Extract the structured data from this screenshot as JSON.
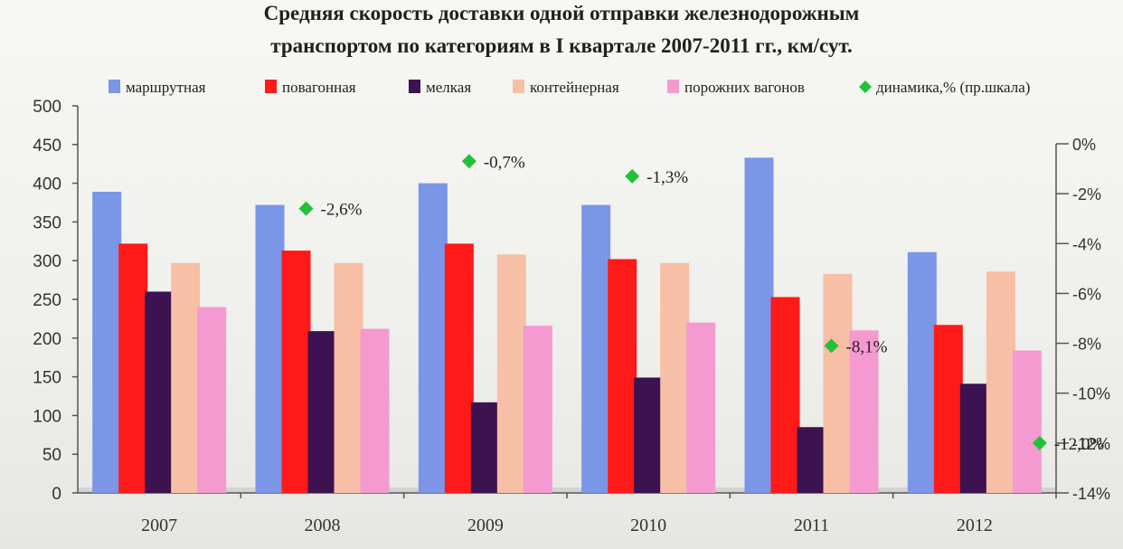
{
  "title": {
    "line1": "Средняя скорость доставки одной отправки железнодорожным",
    "line2": "транспортом по категориям в I квартале 2007-2011 гг., км/сут."
  },
  "chart_data": {
    "type": "bar",
    "title": "Средняя скорость доставки одной отправки железнодорожным транспортом по категориям в I квартале 2007-2011 гг., км/сут.",
    "categories": [
      "2007",
      "2008",
      "2009",
      "2010",
      "2011",
      "2012"
    ],
    "series": [
      {
        "name": "маршрутная",
        "color": "#7b96e6",
        "values": [
          389,
          372,
          400,
          372,
          433,
          311
        ]
      },
      {
        "name": "повагонная",
        "color": "#ff1a1a",
        "values": [
          322,
          313,
          322,
          302,
          253,
          217
        ]
      },
      {
        "name": "мелкая",
        "color": "#3d1250",
        "values": [
          260,
          209,
          117,
          149,
          85,
          141
        ]
      },
      {
        "name": "контейнерная",
        "color": "#f6bfa6",
        "values": [
          297,
          297,
          308,
          297,
          283,
          286
        ]
      },
      {
        "name": "порожних вагонов",
        "color": "#f49ad0",
        "values": [
          240,
          212,
          216,
          220,
          210,
          184
        ]
      }
    ],
    "line_series": {
      "name": "динамика,% (пр.шкала)",
      "color": "#22c13a",
      "axis": "right",
      "x": [
        "2008",
        "2009",
        "2010",
        "2011",
        "2012"
      ],
      "values": [
        -2.6,
        -0.7,
        -1.3,
        -8.1,
        -12.0
      ],
      "labels": [
        "-2,6%",
        "-0,7%",
        "-1,3%",
        "-8,1%",
        "-12,0%"
      ]
    },
    "y_left": {
      "min": 0,
      "max": 500,
      "step": 50,
      "ticks": [
        "0",
        "50",
        "100",
        "150",
        "200",
        "250",
        "300",
        "350",
        "400",
        "450",
        "500"
      ]
    },
    "y_right": {
      "min": -14,
      "max": 0,
      "step": 2,
      "ticks": [
        "0%",
        "-2%",
        "-4%",
        "-6%",
        "-8%",
        "-10%",
        "-12%",
        "-14%"
      ]
    },
    "legend_position": "top",
    "grid": false
  }
}
